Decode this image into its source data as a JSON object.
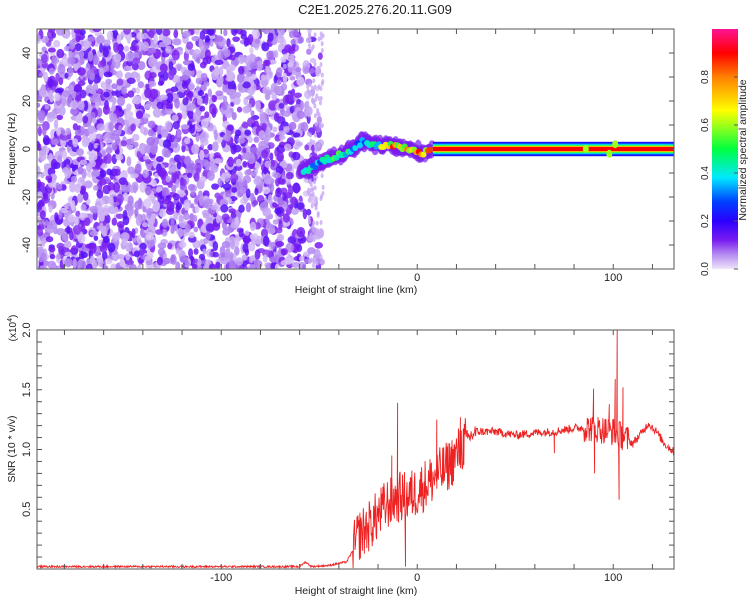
{
  "title": "C2E1.2025.276.20.11.G09",
  "colors": {
    "snr_line": "#ee2222",
    "axis": "#555555"
  },
  "chart_data": [
    {
      "type": "heatmap",
      "title": "C2E1.2025.276.20.11.G09",
      "xlabel": "Height of straight line (km)",
      "ylabel": "Frequency (Hz)",
      "xlim": [
        -194,
        131
      ],
      "ylim": [
        -50,
        50
      ],
      "xticks": [
        -100,
        0,
        100
      ],
      "yticks": [
        -40,
        -20,
        0,
        20,
        40
      ],
      "colorbar": {
        "label": "Normalized spectral amplitude",
        "range": [
          0,
          1
        ],
        "ticks": [
          "0.0",
          "0.2",
          "0.4",
          "0.6",
          "0.8"
        ]
      },
      "noise_region_km": [
        -194,
        -55
      ],
      "ridge": [
        {
          "x": -57,
          "f": -9,
          "amp": 0.45
        },
        {
          "x": -50,
          "f": -6,
          "amp": 0.4
        },
        {
          "x": -42,
          "f": -3,
          "amp": 0.55
        },
        {
          "x": -35,
          "f": -1,
          "amp": 0.5
        },
        {
          "x": -28,
          "f": 3,
          "amp": 0.35
        },
        {
          "x": -20,
          "f": 1.5,
          "amp": 0.55
        },
        {
          "x": -14,
          "f": 1.5,
          "amp": 0.85
        },
        {
          "x": -5,
          "f": 0,
          "amp": 0.9
        },
        {
          "x": 3,
          "f": -1.5,
          "amp": 0.9
        },
        {
          "x": 8,
          "f": 0,
          "amp": 0.95
        },
        {
          "x": 131,
          "f": 0,
          "amp": 0.95
        }
      ]
    },
    {
      "type": "line",
      "xlabel": "Height of straight line (km)",
      "ylabel": "SNR (10 * v/v)",
      "y_multiplier": "(x10",
      "y_multiplier_exp": "4",
      "y_multiplier_close": ")",
      "xlim": [
        -194,
        131
      ],
      "ylim": [
        0,
        2.0
      ],
      "xticks": [
        -100,
        0,
        100
      ],
      "yticks": [
        "0.5",
        "1.0",
        "1.5",
        "2.0"
      ],
      "series": [
        {
          "name": "SNR",
          "points": [
            [
              -194,
              0.02
            ],
            [
              -60,
              0.02
            ],
            [
              -57,
              0.06
            ],
            [
              -54,
              0.02
            ],
            [
              -45,
              0.03
            ],
            [
              -36,
              0.06
            ],
            [
              -33,
              0.15
            ],
            [
              -30,
              0.28
            ],
            [
              -25,
              0.35
            ],
            [
              -20,
              0.45
            ],
            [
              -15,
              0.55
            ],
            [
              -10,
              0.6
            ],
            [
              -5,
              0.6
            ],
            [
              0,
              0.65
            ],
            [
              5,
              0.72
            ],
            [
              10,
              0.78
            ],
            [
              15,
              0.85
            ],
            [
              20,
              0.95
            ],
            [
              25,
              1.08
            ],
            [
              30,
              1.15
            ],
            [
              40,
              1.15
            ],
            [
              50,
              1.12
            ],
            [
              60,
              1.14
            ],
            [
              70,
              1.15
            ],
            [
              80,
              1.18
            ],
            [
              90,
              1.18
            ],
            [
              100,
              1.15
            ],
            [
              106,
              1.1
            ],
            [
              110,
              1.05
            ],
            [
              115,
              1.15
            ],
            [
              118,
              1.22
            ],
            [
              122,
              1.15
            ],
            [
              126,
              1.05
            ],
            [
              131,
              0.98
            ]
          ],
          "spikes": [
            [
              -10,
              1.39
            ],
            [
              -13,
              0.95
            ],
            [
              -6,
              0.02
            ],
            [
              10,
              1.25
            ],
            [
              22,
              1.27
            ],
            [
              70,
              0.97
            ],
            [
              90,
              1.51
            ],
            [
              90.5,
              0.8
            ],
            [
              98,
              1.38
            ],
            [
              101,
              1.59
            ],
            [
              102,
              2.0
            ],
            [
              103,
              0.58
            ],
            [
              105,
              1.52
            ]
          ]
        }
      ]
    }
  ]
}
